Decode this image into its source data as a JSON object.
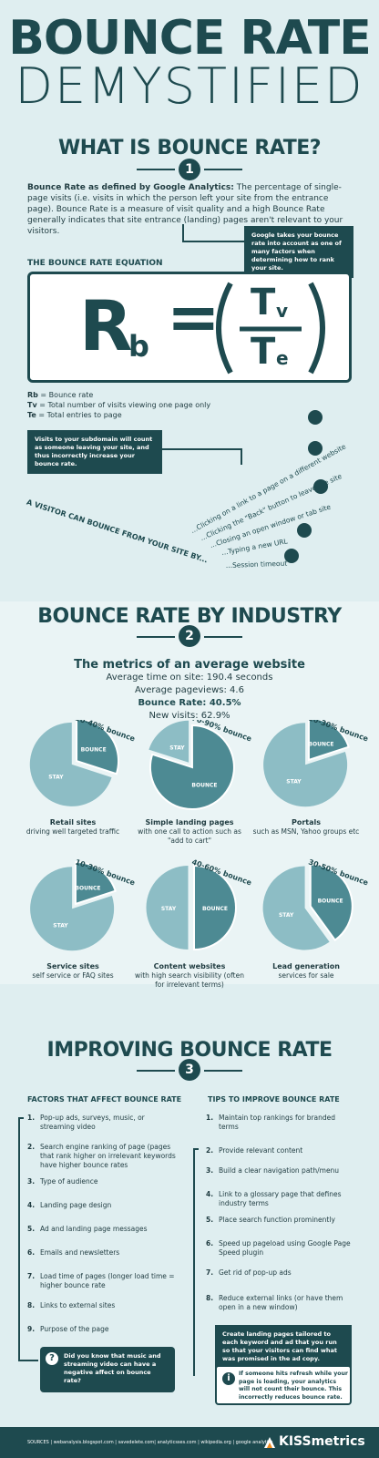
{
  "title": {
    "line1": "BOUNCE RATE",
    "line2": "DEMYSTIFIED"
  },
  "section1": {
    "heading": "WHAT IS BOUNCE RATE?",
    "number": "1",
    "definition_bold": "Bounce Rate as defined by Google Analytics:",
    "definition_text": " The percentage of single-page visits (i.e. visits in which the person left your site from the entrance page). Bounce Rate is a measure of visit quality and a high Bounce Rate generally indicates that site entrance (landing) pages aren't relevant to your visitors.",
    "google_note": "Google takes your bounce rate into account as one of many factors when determining how to rank your site.",
    "equation_heading": "THE BOUNCE RATE EQUATION",
    "eq": {
      "R": "R",
      "b": "b",
      "eq": "=",
      "T1": "T",
      "v": "v",
      "T2": "T",
      "e": "e"
    },
    "legend": [
      {
        "key": "Rb",
        "text": " = Bounce rate"
      },
      {
        "key": "Tv",
        "text": " = Total number of visits viewing one page only"
      },
      {
        "key": "Te",
        "text": " = Total entries to page"
      }
    ],
    "subdomain_note": "Visits to your subdomain will count as someone leaving your site, and thus incorrectly increase your bounce rate.",
    "visitor_label": "A VISITOR CAN BOUNCE FROM YOUR SITE BY...",
    "bounce_ways": [
      "...Clicking on a link to a page on a different website",
      "...Clicking the \"Back\" button to leave the site",
      "...Closing an open window or tab site",
      "...Typing a new URL",
      "...Session timeout"
    ]
  },
  "section2": {
    "heading": "BOUNCE RATE BY INDUSTRY",
    "number": "2",
    "metrics_title": "The metrics of an average website",
    "metrics": [
      "Average time on site: 190.4 seconds",
      "Average pageviews: 4.6",
      "Bounce Rate: 40.5%",
      "New visits: 62.9%"
    ],
    "pies": [
      {
        "range": "20-40% bounce",
        "bounce": 30,
        "title": "Retail sites",
        "sub": "driving well targeted traffic"
      },
      {
        "range": "70-90% bounce",
        "bounce": 80,
        "title": "Simple landing pages",
        "sub": "with one call to action such as \"add to cart\""
      },
      {
        "range": "10-30% bounce",
        "bounce": 20,
        "title": "Portals",
        "sub": "such as MSN, Yahoo groups etc"
      },
      {
        "range": "10-30% bounce",
        "bounce": 20,
        "title": "Service sites",
        "sub": "self service or FAQ sites"
      },
      {
        "range": "40-60% bounce",
        "bounce": 50,
        "title": "Content websites",
        "sub": "with high search visibility (often for irrelevant terms)"
      },
      {
        "range": "30-50% bounce",
        "bounce": 40,
        "title": "Lead generation",
        "sub": "services for sale"
      }
    ],
    "stay_label": "STAY",
    "bounce_label": "BOUNCE"
  },
  "section3": {
    "heading": "IMPROVING BOUNCE RATE",
    "number": "3",
    "factors_head": "FACTORS THAT AFFECT BOUNCE RATE",
    "factors": [
      "Pop-up ads, surveys, music, or streaming video",
      "Search engine ranking of page (pages that rank higher on irrelevant keywords have higher bounce rates",
      "Type of audience",
      "Landing page design",
      "Ad and landing page messages",
      "Emails and newsletters",
      "Load time of pages (longer load time = higher bounce rate",
      "Links to external sites",
      "Purpose of the page"
    ],
    "tips_head": "TIPS TO IMPROVE BOUNCE RATE",
    "tips": [
      "Maintain top rankings for branded terms",
      "Provide relevant content",
      "Build a clear navigation path/menu",
      "Link to a glossary page that defines industry terms",
      "Place search function prominently",
      "Speed up pageload using Google Page Speed plugin",
      "Get rid of pop-up ads",
      "Reduce external links (or have them open in a new window)"
    ],
    "music_note": "Did you know that music and streaming video can have a negative affect on bounce rate?",
    "landing_note": "Create landing pages tailored to each keyword and ad that you run so that your visitors can find what was promised in the ad copy.",
    "refresh_note": "If someone hits refresh while your page is loading, your analytics will not count their bounce. This incorrectly reduces bounce rate."
  },
  "footer": {
    "sources": "SOURCES | webanalysis.blogspot.com | savedelete.com| analyticsses.com | wikipedia.org | google analytics",
    "brand": "KISSmetrics"
  },
  "colors": {
    "dark": "#1e4a4f",
    "mid": "#4d8a93",
    "light": "#8dbdc5",
    "bg": "#dfeef0"
  }
}
